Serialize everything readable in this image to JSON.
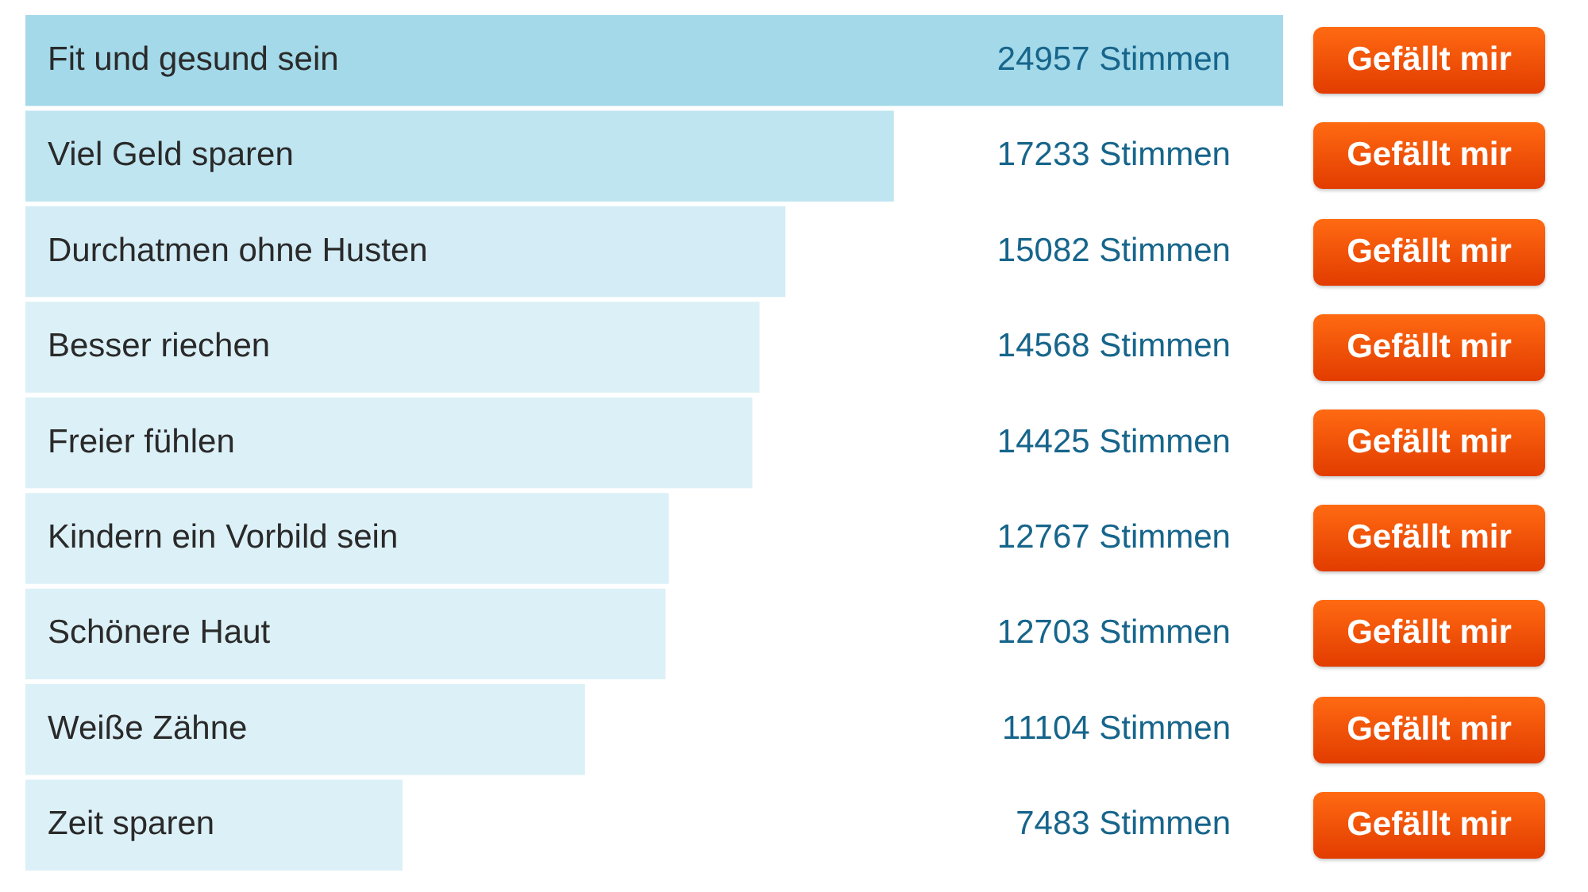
{
  "chart_data": {
    "type": "bar",
    "orientation": "horizontal",
    "categories": [
      "Fit und gesund sein",
      "Viel Geld sparen",
      "Durchatmen ohne Husten",
      "Besser riechen",
      "Freier fühlen",
      "Kindern ein Vorbild sein",
      "Schönere Haut",
      "Weiße Zähne",
      "Zeit sparen"
    ],
    "values": [
      24957,
      17233,
      15082,
      14568,
      14425,
      12767,
      12703,
      11104,
      7483
    ],
    "colors": [
      "#a3d9e9",
      "#bfe5f1",
      "#d3ecf5",
      "#dcf0f7",
      "#dcf0f7",
      "#dcf0f7",
      "#dcf0f7",
      "#dcf0f7",
      "#dcf0f7"
    ],
    "value_labels": [
      "24957 Stimmen",
      "17233 Stimmen",
      "15082 Stimmen",
      "14568 Stimmen",
      "14425 Stimmen",
      "12767 Stimmen",
      "12703 Stimmen",
      "11104 Stimmen",
      "7483 Stimmen"
    ],
    "annotations": [
      "Gefällt mir",
      "Gefällt mir",
      "Gefällt mir",
      "Gefällt mir",
      "Gefällt mir",
      "Gefällt mir",
      "Gefällt mir",
      "Gefällt mir",
      "Gefällt mir"
    ]
  }
}
